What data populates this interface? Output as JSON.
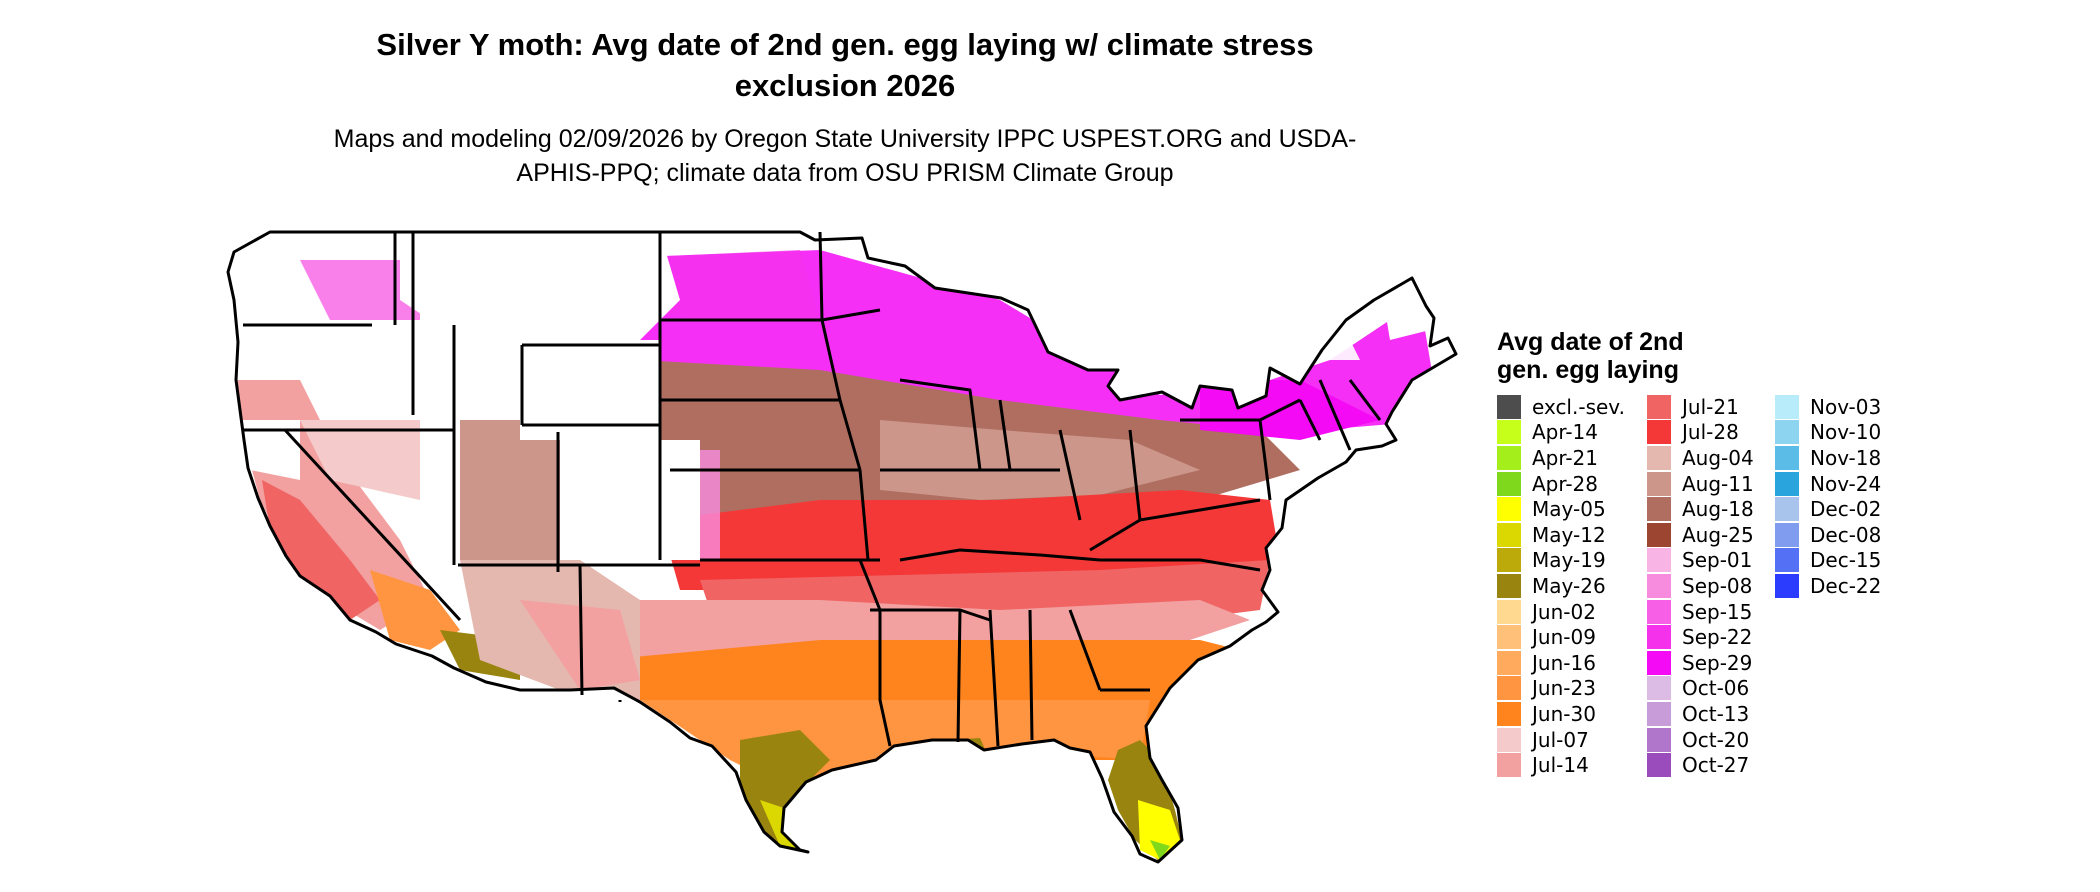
{
  "title": "Silver Y moth: Avg date of 2nd gen. egg laying w/ climate stress exclusion 2026",
  "subtitle": "Maps and modeling 02/09/2026 by Oregon State University IPPC USPEST.ORG and USDA-APHIS-PPQ; climate data from OSU PRISM Climate Group",
  "legend": {
    "title": "Avg date of 2nd gen. egg laying",
    "columns": [
      [
        {
          "label": "excl.-sev.",
          "color": "#4d4d4d"
        },
        {
          "label": "Apr-14",
          "color": "#c6ff1a"
        },
        {
          "label": "Apr-21",
          "color": "#a4ee1c"
        },
        {
          "label": "Apr-28",
          "color": "#7fd81c"
        },
        {
          "label": "May-05",
          "color": "#ffff00"
        },
        {
          "label": "May-12",
          "color": "#dbd700"
        },
        {
          "label": "May-19",
          "color": "#bcaa0a"
        },
        {
          "label": "May-26",
          "color": "#9a8410"
        },
        {
          "label": "Jun-02",
          "color": "#ffd98f"
        },
        {
          "label": "Jun-09",
          "color": "#ffc07a"
        },
        {
          "label": "Jun-16",
          "color": "#ffaa5c"
        },
        {
          "label": "Jun-23",
          "color": "#ff9540"
        },
        {
          "label": "Jun-30",
          "color": "#ff841e"
        },
        {
          "label": "Jul-07",
          "color": "#f4caca"
        },
        {
          "label": "Jul-14",
          "color": "#f2a0a0"
        }
      ],
      [
        {
          "label": "Jul-21",
          "color": "#f06464"
        },
        {
          "label": "Jul-28",
          "color": "#f43838"
        },
        {
          "label": "Aug-04",
          "color": "#e4b8ae"
        },
        {
          "label": "Aug-11",
          "color": "#cc968b"
        },
        {
          "label": "Aug-18",
          "color": "#b06e60"
        },
        {
          "label": "Aug-25",
          "color": "#9c4632"
        },
        {
          "label": "Sep-01",
          "color": "#f7b4e4"
        },
        {
          "label": "Sep-08",
          "color": "#f78cdf"
        },
        {
          "label": "Sep-15",
          "color": "#f760e6"
        },
        {
          "label": "Sep-22",
          "color": "#f531ec"
        },
        {
          "label": "Sep-29",
          "color": "#f40af4"
        },
        {
          "label": "Oct-06",
          "color": "#dcbce4"
        },
        {
          "label": "Oct-13",
          "color": "#c79cd8"
        },
        {
          "label": "Oct-20",
          "color": "#b076cc"
        },
        {
          "label": "Oct-27",
          "color": "#9a4cbc"
        }
      ],
      [
        {
          "label": "Nov-03",
          "color": "#b8ecfa"
        },
        {
          "label": "Nov-10",
          "color": "#8cd4f0"
        },
        {
          "label": "Nov-18",
          "color": "#5bbce8"
        },
        {
          "label": "Nov-24",
          "color": "#2aa4dc"
        },
        {
          "label": "Dec-02",
          "color": "#a9c4ec"
        },
        {
          "label": "Dec-08",
          "color": "#7f9cee"
        },
        {
          "label": "Dec-15",
          "color": "#5470f4"
        },
        {
          "label": "Dec-22",
          "color": "#2b3cff"
        }
      ]
    ]
  }
}
